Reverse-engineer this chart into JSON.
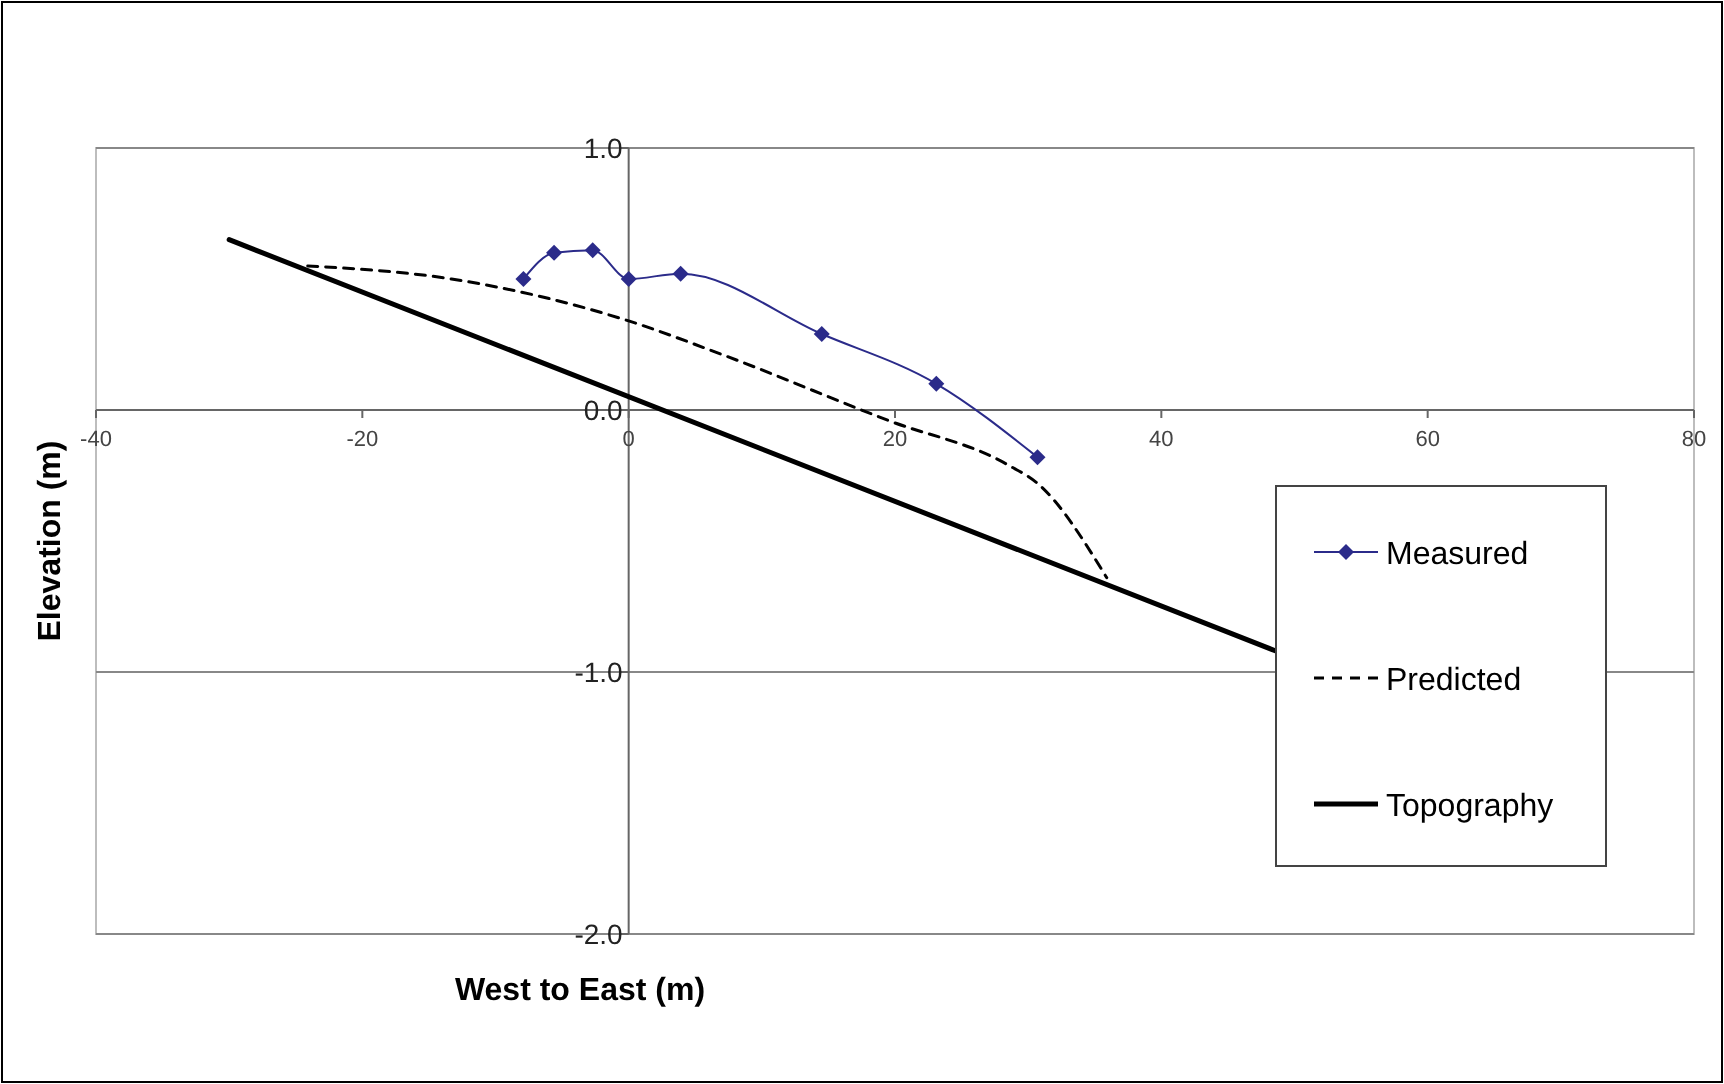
{
  "chart_data": {
    "type": "line",
    "xlabel": "West to East (m)",
    "ylabel": "Elevation (m)",
    "xlim": [
      -40,
      80
    ],
    "xticks": [
      -40,
      -20,
      0,
      20,
      40,
      60,
      80
    ],
    "ylim": [
      -2,
      1
    ],
    "yticks": [
      {
        "value": -2,
        "label": "-2.0"
      },
      {
        "value": -1,
        "label": "-1.0"
      },
      {
        "value": 0,
        "label": "0.0"
      },
      {
        "value": 1,
        "label": "1.0"
      }
    ],
    "grid": "y",
    "legend": "right",
    "series": [
      {
        "name": "Measured",
        "color": "#2b2b8a",
        "marker": "diamond",
        "line_style": "solid",
        "x": [
          -7.9,
          -5.6,
          -2.7,
          0,
          3.9,
          14.5,
          23.1,
          30.7
        ],
        "values": [
          0.5,
          0.6,
          0.61,
          0.5,
          0.52,
          0.29,
          0.1,
          -0.18
        ]
      },
      {
        "name": "Predicted",
        "color": "#000000",
        "marker": "none",
        "line_style": "dashed",
        "x": [
          -24.1,
          -13.3,
          0,
          7.1,
          19.5,
          28.5,
          30.7,
          35.9
        ],
        "values": [
          0.55,
          0.5,
          0.34,
          0.21,
          -0.04,
          -0.21,
          -0.28,
          -0.64
        ]
      },
      {
        "name": "Topography",
        "color": "#000000",
        "marker": "none",
        "line_style": "solid",
        "x": [
          -30,
          48.6
        ],
        "values": [
          0.65,
          -0.92
        ]
      }
    ]
  }
}
